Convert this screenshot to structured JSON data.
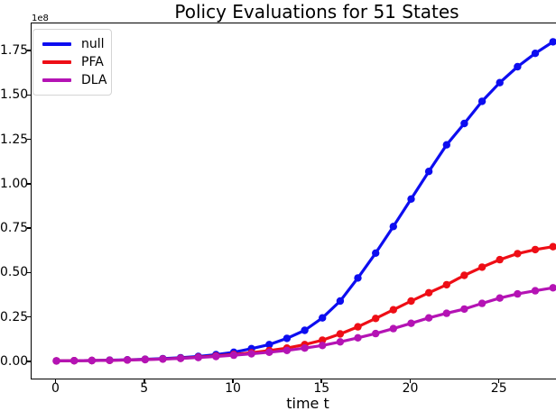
{
  "chart_data": {
    "type": "line",
    "title": "Policy Evaluations for 51 States",
    "xlabel": "time t",
    "ylabel": "",
    "y_axis_multiplier_label": "1e8",
    "y_unit": "values are in units of 1e8",
    "grid": false,
    "marker": "o",
    "legend_position": "upper left",
    "x": [
      0,
      1,
      2,
      3,
      4,
      5,
      6,
      7,
      8,
      9,
      10,
      11,
      12,
      13,
      14,
      15,
      16,
      17,
      18,
      19,
      20,
      21,
      22,
      23,
      24,
      25,
      26,
      27,
      28
    ],
    "series": [
      {
        "name": "null",
        "color": "#0d0df0",
        "values": [
          0.008,
          0.009,
          0.01,
          0.012,
          0.014,
          0.017,
          0.021,
          0.026,
          0.033,
          0.043,
          0.057,
          0.077,
          0.1,
          0.135,
          0.18,
          0.25,
          0.345,
          0.475,
          0.615,
          0.765,
          0.92,
          1.075,
          1.225,
          1.345,
          1.47,
          1.575,
          1.665,
          1.74,
          1.805
        ]
      },
      {
        "name": "PFA",
        "color": "#ee0e16",
        "values": [
          0.008,
          0.009,
          0.01,
          0.011,
          0.013,
          0.016,
          0.019,
          0.023,
          0.029,
          0.036,
          0.044,
          0.054,
          0.066,
          0.08,
          0.1,
          0.125,
          0.16,
          0.2,
          0.247,
          0.296,
          0.345,
          0.392,
          0.437,
          0.49,
          0.536,
          0.578,
          0.612,
          0.635,
          0.651
        ]
      },
      {
        "name": "DLA",
        "color": "#b413b4",
        "values": [
          0.008,
          0.009,
          0.01,
          0.011,
          0.013,
          0.015,
          0.018,
          0.022,
          0.027,
          0.033,
          0.04,
          0.048,
          0.057,
          0.067,
          0.08,
          0.095,
          0.115,
          0.138,
          0.162,
          0.19,
          0.22,
          0.25,
          0.276,
          0.3,
          0.332,
          0.362,
          0.385,
          0.403,
          0.42
        ]
      }
    ],
    "xticks": [
      {
        "label": "0",
        "value": 0
      },
      {
        "label": "5",
        "value": 5
      },
      {
        "label": "10",
        "value": 10
      },
      {
        "label": "15",
        "value": 15
      },
      {
        "label": "20",
        "value": 20
      },
      {
        "label": "25",
        "value": 25
      }
    ],
    "yticks": [
      {
        "label": "0.00",
        "value": 0.0
      },
      {
        "label": "0.25",
        "value": 0.25
      },
      {
        "label": "0.50",
        "value": 0.5
      },
      {
        "label": "0.75",
        "value": 0.75
      },
      {
        "label": "1.00",
        "value": 1.0
      },
      {
        "label": "1.25",
        "value": 1.25
      },
      {
        "label": "1.50",
        "value": 1.5
      },
      {
        "label": "1.75",
        "value": 1.75
      }
    ],
    "xlim": [
      -1.4,
      28.22
    ],
    "ylim": [
      -0.0914,
      1.9086
    ]
  }
}
